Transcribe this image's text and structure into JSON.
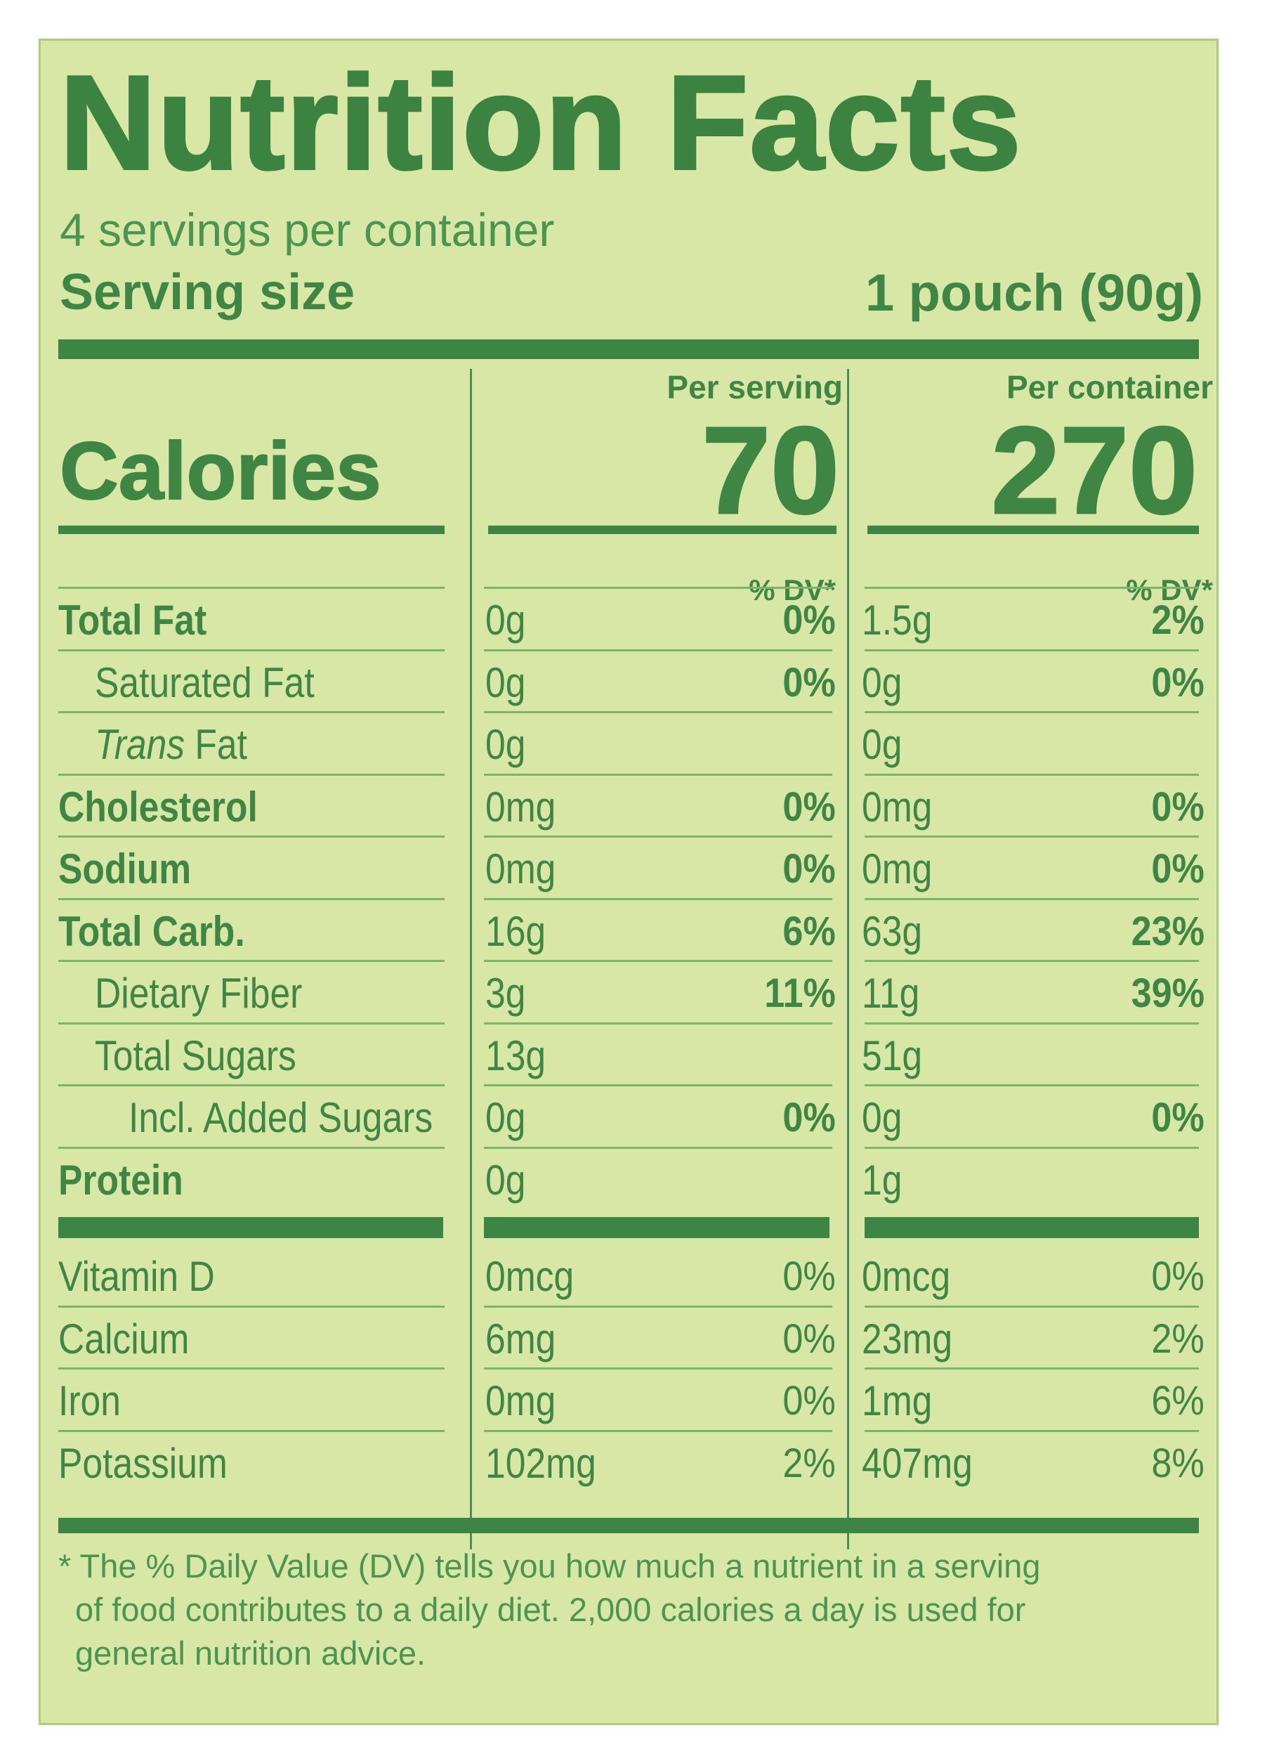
{
  "title": "Nutrition Facts",
  "servings_per_container": "4 servings per container",
  "serving_size_label": "Serving size",
  "serving_size_value": "1 pouch (90g)",
  "per_serving_label": "Per serving",
  "per_container_label": "Per container",
  "calories_label": "Calories",
  "calories_per_serving": "70",
  "calories_per_container": "270",
  "dv_header": "% DV*",
  "nutrients": [
    {
      "label": "Total Fat",
      "serving_amt": "0g",
      "serving_dv": "0%",
      "container_amt": "1.5g",
      "container_dv": "2%"
    },
    {
      "label": "Saturated Fat",
      "serving_amt": "0g",
      "serving_dv": "0%",
      "container_amt": "0g",
      "container_dv": "0%"
    },
    {
      "label_italic": "Trans",
      "label": " Fat",
      "serving_amt": "0g",
      "serving_dv": "",
      "container_amt": "0g",
      "container_dv": ""
    },
    {
      "label": "Cholesterol",
      "serving_amt": "0mg",
      "serving_dv": "0%",
      "container_amt": "0mg",
      "container_dv": "0%"
    },
    {
      "label": "Sodium",
      "serving_amt": "0mg",
      "serving_dv": "0%",
      "container_amt": "0mg",
      "container_dv": "0%"
    },
    {
      "label": "Total Carb.",
      "serving_amt": "16g",
      "serving_dv": "6%",
      "container_amt": "63g",
      "container_dv": "23%"
    },
    {
      "label": "Dietary Fiber",
      "serving_amt": "3g",
      "serving_dv": "11%",
      "container_amt": "11g",
      "container_dv": "39%"
    },
    {
      "label": "Total Sugars",
      "serving_amt": "13g",
      "serving_dv": "",
      "container_amt": "51g",
      "container_dv": ""
    },
    {
      "label": "Incl. Added Sugars",
      "serving_amt": "0g",
      "serving_dv": "0%",
      "container_amt": "0g",
      "container_dv": "0%"
    },
    {
      "label": "Protein",
      "serving_amt": "0g",
      "serving_dv": "",
      "container_amt": "1g",
      "container_dv": ""
    }
  ],
  "vitamins": [
    {
      "label": "Vitamin D",
      "serving_amt": "0mcg",
      "serving_dv": "0%",
      "container_amt": "0mcg",
      "container_dv": "0%"
    },
    {
      "label": "Calcium",
      "serving_amt": "6mg",
      "serving_dv": "0%",
      "container_amt": "23mg",
      "container_dv": "2%"
    },
    {
      "label": "Iron",
      "serving_amt": "0mg",
      "serving_dv": "0%",
      "container_amt": "1mg",
      "container_dv": "6%"
    },
    {
      "label": "Potassium",
      "serving_amt": "102mg",
      "serving_dv": "2%",
      "container_amt": "407mg",
      "container_dv": "8%"
    }
  ],
  "footnote_lines": [
    "* The % Daily Value (DV) tells you how much a nutrient in a serving",
    "of food contributes to a daily diet. 2,000 calories a day is used for",
    "general nutrition advice."
  ]
}
